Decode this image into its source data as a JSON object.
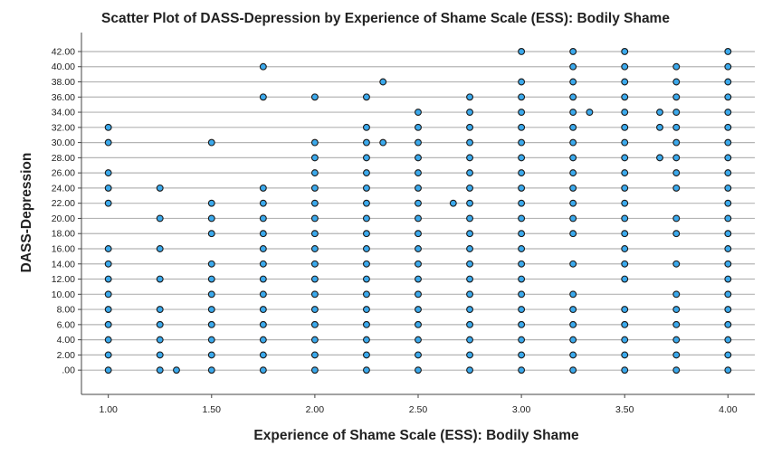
{
  "chart_data": {
    "type": "scatter",
    "title": "Scatter Plot of DASS-Depression by Experience of Shame Scale (ESS): Bodily Shame",
    "xlabel": "Experience of Shame Scale (ESS): Bodily Shame",
    "ylabel": "DASS-Depression",
    "xlim": [
      0.87,
      4.13
    ],
    "ylim": [
      -3.2,
      44.5
    ],
    "x_ticks": [
      1.0,
      1.5,
      2.0,
      2.5,
      3.0,
      3.5,
      4.0
    ],
    "x_tick_labels": [
      "1.00",
      "1.50",
      "2.00",
      "2.50",
      "3.00",
      "3.50",
      "4.00"
    ],
    "y_ticks": [
      0,
      2,
      4,
      6,
      8,
      10,
      12,
      14,
      16,
      18,
      20,
      22,
      24,
      26,
      28,
      30,
      32,
      34,
      36,
      38,
      40,
      42
    ],
    "y_tick_labels": [
      ".00",
      "2.00",
      "4.00",
      "6.00",
      "8.00",
      "10.00",
      "12.00",
      "14.00",
      "16.00",
      "18.00",
      "20.00",
      "22.00",
      "24.00",
      "26.00",
      "28.00",
      "30.00",
      "32.00",
      "34.00",
      "36.00",
      "38.00",
      "40.00",
      "42.00"
    ],
    "grid": "horizontal",
    "marker_fill": "#3ba9ec",
    "marker_edge": "#1a1a1a",
    "points_by_y": [
      {
        "y": 42,
        "x": [
          3.0,
          3.25,
          3.5,
          4.0
        ]
      },
      {
        "y": 40,
        "x": [
          1.75,
          3.25,
          3.5,
          3.75,
          4.0
        ]
      },
      {
        "y": 38,
        "x": [
          2.33,
          3.0,
          3.25,
          3.5,
          3.75,
          4.0
        ]
      },
      {
        "y": 36,
        "x": [
          1.75,
          2.0,
          2.25,
          2.75,
          3.0,
          3.25,
          3.5,
          3.75,
          4.0
        ]
      },
      {
        "y": 34,
        "x": [
          2.5,
          2.75,
          3.0,
          3.25,
          3.33,
          3.5,
          3.67,
          3.75,
          4.0
        ]
      },
      {
        "y": 32,
        "x": [
          1.0,
          2.25,
          2.5,
          2.75,
          3.0,
          3.25,
          3.5,
          3.67,
          3.75,
          4.0
        ]
      },
      {
        "y": 30,
        "x": [
          1.0,
          1.5,
          2.0,
          2.25,
          2.33,
          2.5,
          2.75,
          3.0,
          3.25,
          3.5,
          3.75,
          4.0
        ]
      },
      {
        "y": 28,
        "x": [
          2.0,
          2.25,
          2.5,
          2.75,
          3.0,
          3.25,
          3.5,
          3.67,
          3.75,
          4.0
        ]
      },
      {
        "y": 26,
        "x": [
          1.0,
          2.0,
          2.25,
          2.5,
          2.75,
          3.0,
          3.25,
          3.5,
          3.75,
          4.0
        ]
      },
      {
        "y": 24,
        "x": [
          1.0,
          1.25,
          1.75,
          2.0,
          2.25,
          2.5,
          2.75,
          3.0,
          3.25,
          3.5,
          3.75,
          4.0
        ]
      },
      {
        "y": 22,
        "x": [
          1.0,
          1.5,
          1.75,
          2.0,
          2.25,
          2.5,
          2.67,
          2.75,
          3.0,
          3.25,
          3.5,
          4.0
        ]
      },
      {
        "y": 20,
        "x": [
          1.25,
          1.5,
          1.75,
          2.0,
          2.25,
          2.5,
          2.75,
          3.0,
          3.25,
          3.5,
          3.75,
          4.0
        ]
      },
      {
        "y": 18,
        "x": [
          1.5,
          1.75,
          2.0,
          2.25,
          2.5,
          2.75,
          3.0,
          3.25,
          3.5,
          3.75,
          4.0
        ]
      },
      {
        "y": 16,
        "x": [
          1.0,
          1.25,
          1.75,
          2.0,
          2.25,
          2.5,
          2.75,
          3.0,
          3.5,
          4.0
        ]
      },
      {
        "y": 14,
        "x": [
          1.0,
          1.5,
          1.75,
          2.0,
          2.25,
          2.5,
          2.75,
          3.0,
          3.25,
          3.5,
          3.75,
          4.0
        ]
      },
      {
        "y": 12,
        "x": [
          1.0,
          1.25,
          1.5,
          1.75,
          2.0,
          2.25,
          2.5,
          2.75,
          3.0,
          3.5,
          4.0
        ]
      },
      {
        "y": 10,
        "x": [
          1.0,
          1.5,
          1.75,
          2.0,
          2.25,
          2.5,
          2.75,
          3.0,
          3.25,
          3.75,
          4.0
        ]
      },
      {
        "y": 8,
        "x": [
          1.0,
          1.25,
          1.5,
          1.75,
          2.0,
          2.25,
          2.5,
          2.75,
          3.0,
          3.25,
          3.5,
          3.75,
          4.0
        ]
      },
      {
        "y": 6,
        "x": [
          1.0,
          1.25,
          1.5,
          1.75,
          2.0,
          2.25,
          2.5,
          2.75,
          3.0,
          3.25,
          3.5,
          3.75,
          4.0
        ]
      },
      {
        "y": 4,
        "x": [
          1.0,
          1.25,
          1.5,
          1.75,
          2.0,
          2.25,
          2.5,
          2.75,
          3.0,
          3.25,
          3.5,
          3.75,
          4.0
        ]
      },
      {
        "y": 2,
        "x": [
          1.0,
          1.25,
          1.5,
          1.75,
          2.0,
          2.25,
          2.5,
          2.75,
          3.0,
          3.25,
          3.5,
          3.75,
          4.0
        ]
      },
      {
        "y": 0,
        "x": [
          1.0,
          1.25,
          1.33,
          1.5,
          1.75,
          2.0,
          2.25,
          2.5,
          2.75,
          3.0,
          3.25,
          3.5,
          3.75,
          4.0
        ]
      }
    ]
  }
}
